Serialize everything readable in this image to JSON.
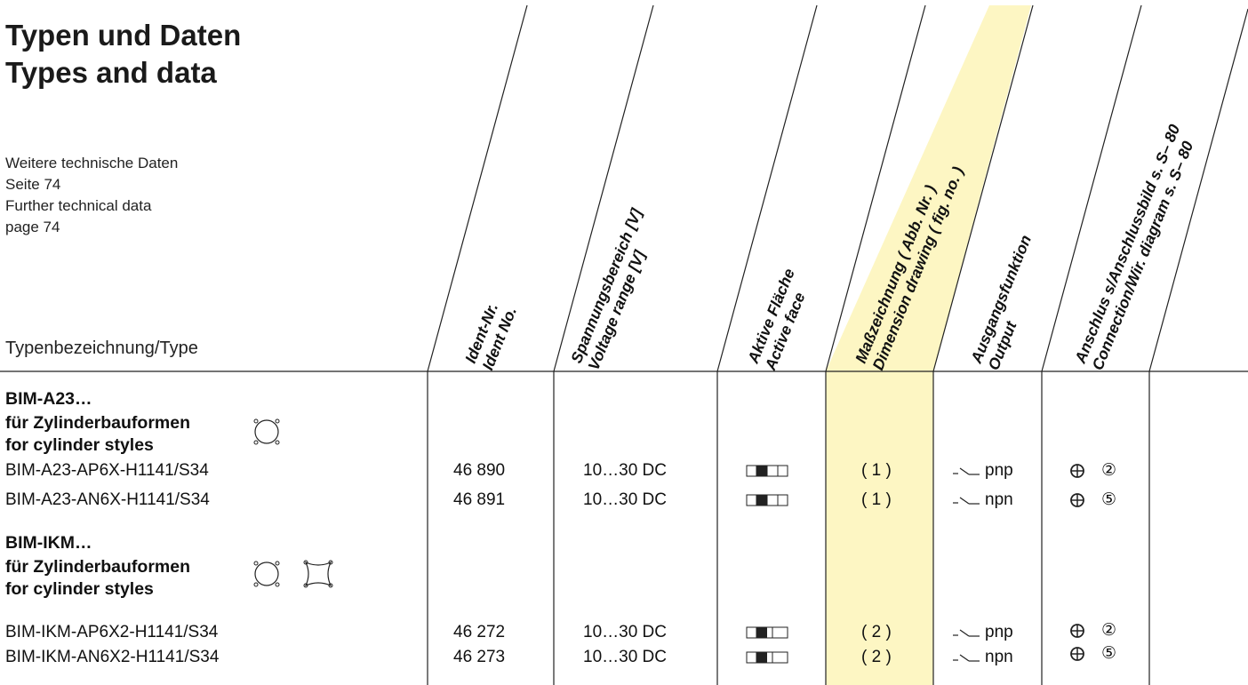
{
  "header": {
    "title_de": "Typen und Daten",
    "title_en": "Types and data",
    "notes": [
      "Weitere technische Daten",
      "Seite 74",
      "Further technical data",
      "page 74"
    ],
    "type_column_label": "Typenbezeichnung/Type",
    "highlight_color": "#fdf6c3"
  },
  "columns": [
    {
      "de": "Ident-Nr.",
      "en": "Ident No."
    },
    {
      "de": "Spannungsbereich [V]",
      "en": "Voltage range [V]"
    },
    {
      "de": "Aktive Fläche",
      "en": "Active face"
    },
    {
      "de": "Maßzeichnung ( Abb. Nr. )",
      "en": "Dimension drawing ( fig. no. )"
    },
    {
      "de": "Ausgangsfunktion",
      "en": "Output"
    },
    {
      "de": "Anschlus s/Anschlussbild s. S– 80",
      "en": "Connection/Wir. diagram s. S– 80"
    }
  ],
  "groups": [
    {
      "title": "BIM-A23…",
      "subtitle_de": "für Zylinderbauformen",
      "subtitle_en": "for cylinder styles",
      "style_icons": [
        "cylinder-round-icon"
      ],
      "rows": [
        {
          "type": "BIM-A23-AP6X-H1141/S34",
          "ident": "46 890",
          "voltage": "10…30 DC",
          "active_face_icon": "active-face-icon",
          "drawing": "( 1 )",
          "output_icon": "normally-open-switch-icon",
          "output": "pnp",
          "connection_icon": "plug-connector-icon",
          "wiring": "②"
        },
        {
          "type": "BIM-A23-AN6X-H1141/S34",
          "ident": "46 891",
          "voltage": "10…30 DC",
          "active_face_icon": "active-face-icon",
          "drawing": "( 1 )",
          "output_icon": "normally-open-switch-icon",
          "output": "npn",
          "connection_icon": "plug-connector-icon",
          "wiring": "⑤"
        }
      ]
    },
    {
      "title": "BIM-IKM…",
      "subtitle_de": "für Zylinderbauformen",
      "subtitle_en": "for cylinder styles",
      "style_icons": [
        "cylinder-round-icon",
        "cylinder-profile-icon"
      ],
      "rows": [
        {
          "type": "BIM-IKM-AP6X2-H1141/S34",
          "ident": "46 272",
          "voltage": "10…30 DC",
          "active_face_icon": "active-face-icon",
          "drawing": "( 2 )",
          "output_icon": "normally-open-switch-icon",
          "output": "pnp",
          "connection_icon": "plug-connector-icon",
          "wiring": "②"
        },
        {
          "type": "BIM-IKM-AN6X2-H1141/S34",
          "ident": "46 273",
          "voltage": "10…30 DC",
          "active_face_icon": "active-face-icon",
          "drawing": "( 2 )",
          "output_icon": "normally-open-switch-icon",
          "output": "npn",
          "connection_icon": "plug-connector-icon",
          "wiring": "⑤"
        }
      ]
    }
  ]
}
